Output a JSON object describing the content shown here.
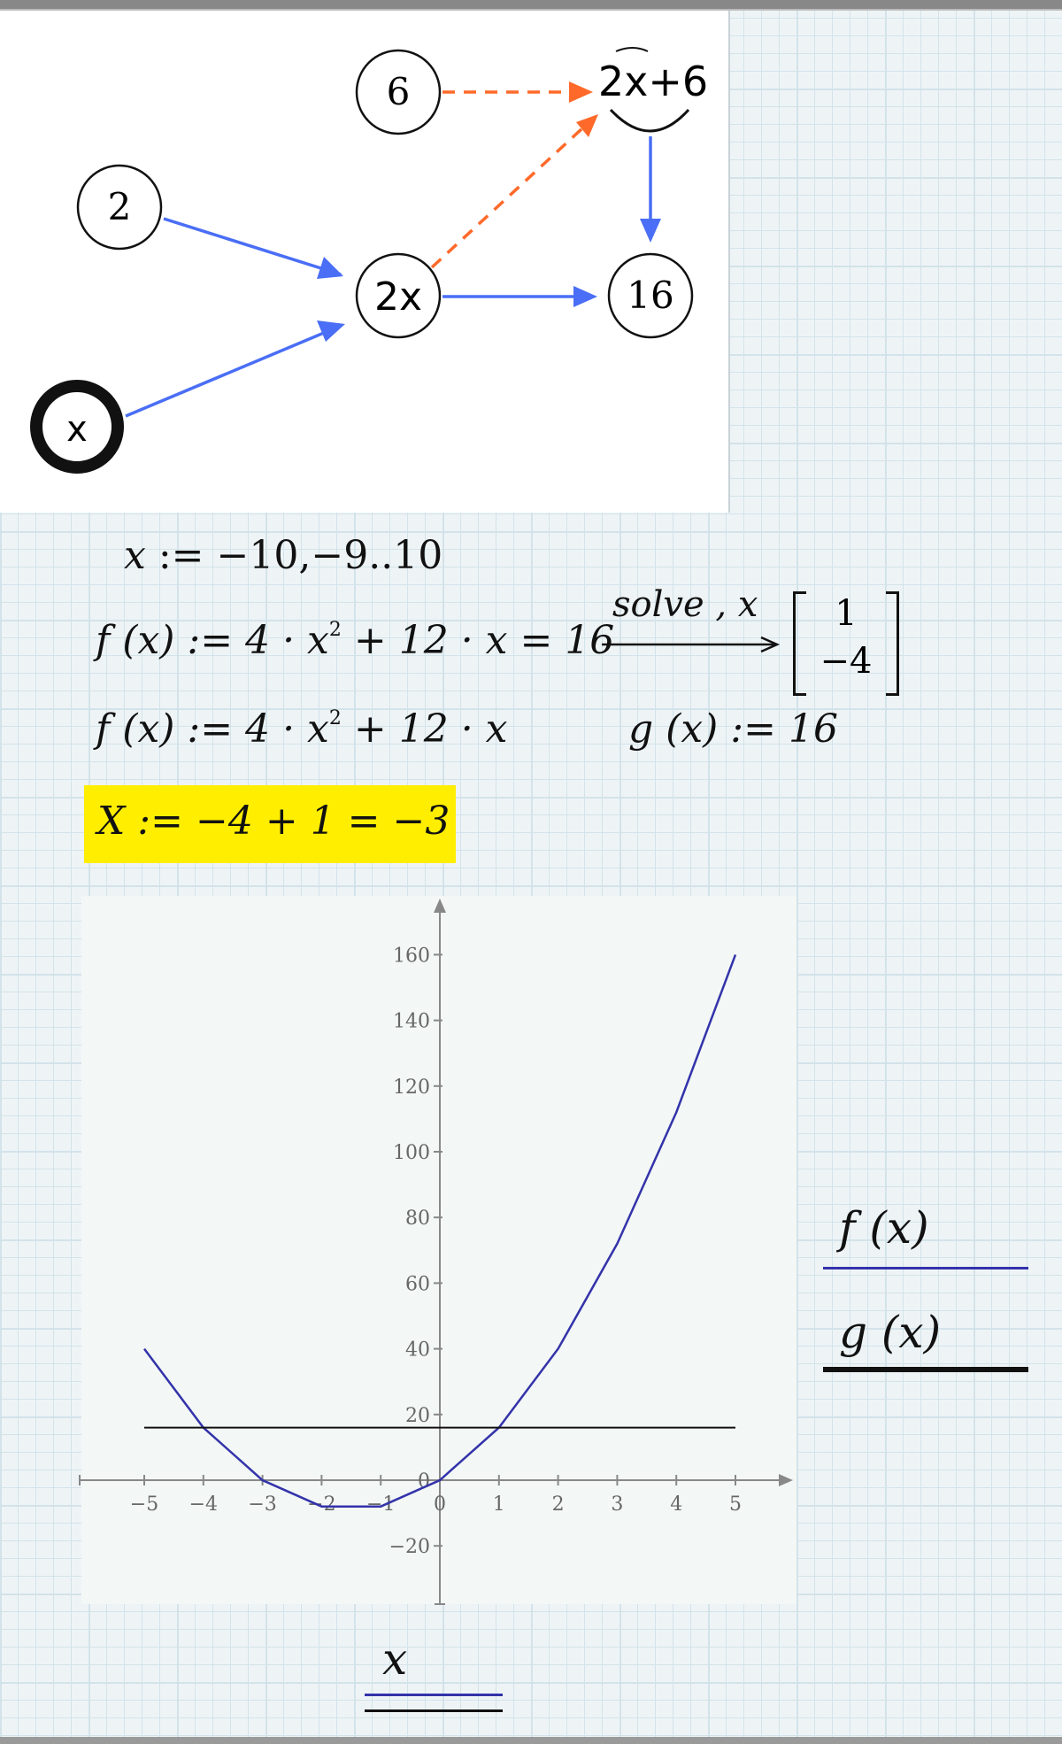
{
  "diagram": {
    "nodes": {
      "six": "6",
      "two": "2",
      "two_x": "2x",
      "two_x_plus_6": "2x+6",
      "sixteen": "16",
      "x": "x"
    }
  },
  "worksheet": {
    "range_def": {
      "var": "x",
      "assign": ":=",
      "value": "−10,−9..10"
    },
    "solve_line": {
      "lhs": "f (x) := 4 · x",
      "exp": "2",
      "rhs": "+ 12 · x = 16",
      "keyword": "solve , x",
      "results": [
        "1",
        "−4"
      ]
    },
    "f_def": {
      "lhs": "f (x) := 4 · x",
      "exp": "2",
      "rhs": "+ 12 · x"
    },
    "g_def": "g (x) := 16",
    "highlight": "X := −4 + 1 = −3"
  },
  "chart_data": {
    "type": "line",
    "x": [
      -5,
      -4,
      -3,
      -2,
      -1,
      0,
      1,
      2,
      3,
      4,
      5
    ],
    "series": [
      {
        "name": "f (x)",
        "values": [
          40,
          16,
          0,
          -8,
          -8,
          0,
          16,
          40,
          72,
          112,
          160
        ],
        "color": "#3333aa"
      },
      {
        "name": "g (x)",
        "values": [
          16,
          16,
          16,
          16,
          16,
          16,
          16,
          16,
          16,
          16,
          16
        ],
        "color": "#111111"
      }
    ],
    "xlabel": "x",
    "xlim": [
      -5,
      5
    ],
    "ylim": [
      -20,
      160
    ],
    "xticks": [
      -5,
      -4,
      -3,
      -2,
      -1,
      0,
      1,
      2,
      3,
      4,
      5
    ],
    "yticks": [
      -20,
      0,
      20,
      40,
      60,
      80,
      100,
      120,
      140,
      160
    ],
    "legend": "right",
    "grid": false
  },
  "colors": {
    "blue_arrow": "#4a6ef5",
    "orange_arrow": "#ff6a2a",
    "highlight": "#ffee00",
    "f_line": "#3333aa",
    "g_line": "#111111"
  }
}
